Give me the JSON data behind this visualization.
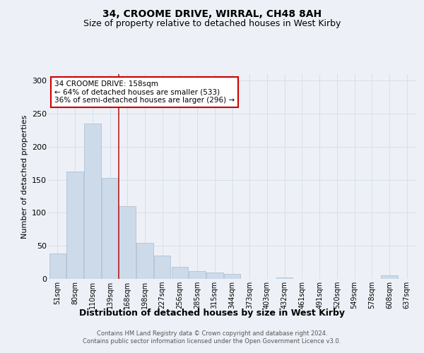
{
  "title": "34, CROOME DRIVE, WIRRAL, CH48 8AH",
  "subtitle": "Size of property relative to detached houses in West Kirby",
  "xlabel": "Distribution of detached houses by size in West Kirby",
  "ylabel": "Number of detached properties",
  "footer_line1": "Contains HM Land Registry data © Crown copyright and database right 2024.",
  "footer_line2": "Contains public sector information licensed under the Open Government Licence v3.0.",
  "annotation_line1": "34 CROOME DRIVE: 158sqm",
  "annotation_line2": "← 64% of detached houses are smaller (533)",
  "annotation_line3": "36% of semi-detached houses are larger (296) →",
  "bar_color": "#ccdaea",
  "bar_edge_color": "#aabbcc",
  "grid_color": "#d5dfe8",
  "vline_color": "#bb2020",
  "annotation_box_color": "#ffffff",
  "annotation_box_edge": "#cc0000",
  "background_color": "#edf1f7",
  "categories": [
    "51sqm",
    "80sqm",
    "110sqm",
    "139sqm",
    "168sqm",
    "198sqm",
    "227sqm",
    "256sqm",
    "285sqm",
    "315sqm",
    "344sqm",
    "373sqm",
    "403sqm",
    "432sqm",
    "461sqm",
    "491sqm",
    "520sqm",
    "549sqm",
    "578sqm",
    "608sqm",
    "637sqm"
  ],
  "values": [
    38,
    162,
    235,
    153,
    110,
    55,
    35,
    18,
    12,
    10,
    7,
    0,
    0,
    2,
    0,
    0,
    0,
    0,
    0,
    5,
    0
  ],
  "vline_x": 3.5,
  "ylim": [
    0,
    310
  ],
  "yticks": [
    0,
    50,
    100,
    150,
    200,
    250,
    300
  ],
  "title_fontsize": 10,
  "subtitle_fontsize": 9,
  "ylabel_fontsize": 8,
  "xlabel_fontsize": 9,
  "tick_fontsize": 7,
  "annot_fontsize": 7.5,
  "footer_fontsize": 6
}
